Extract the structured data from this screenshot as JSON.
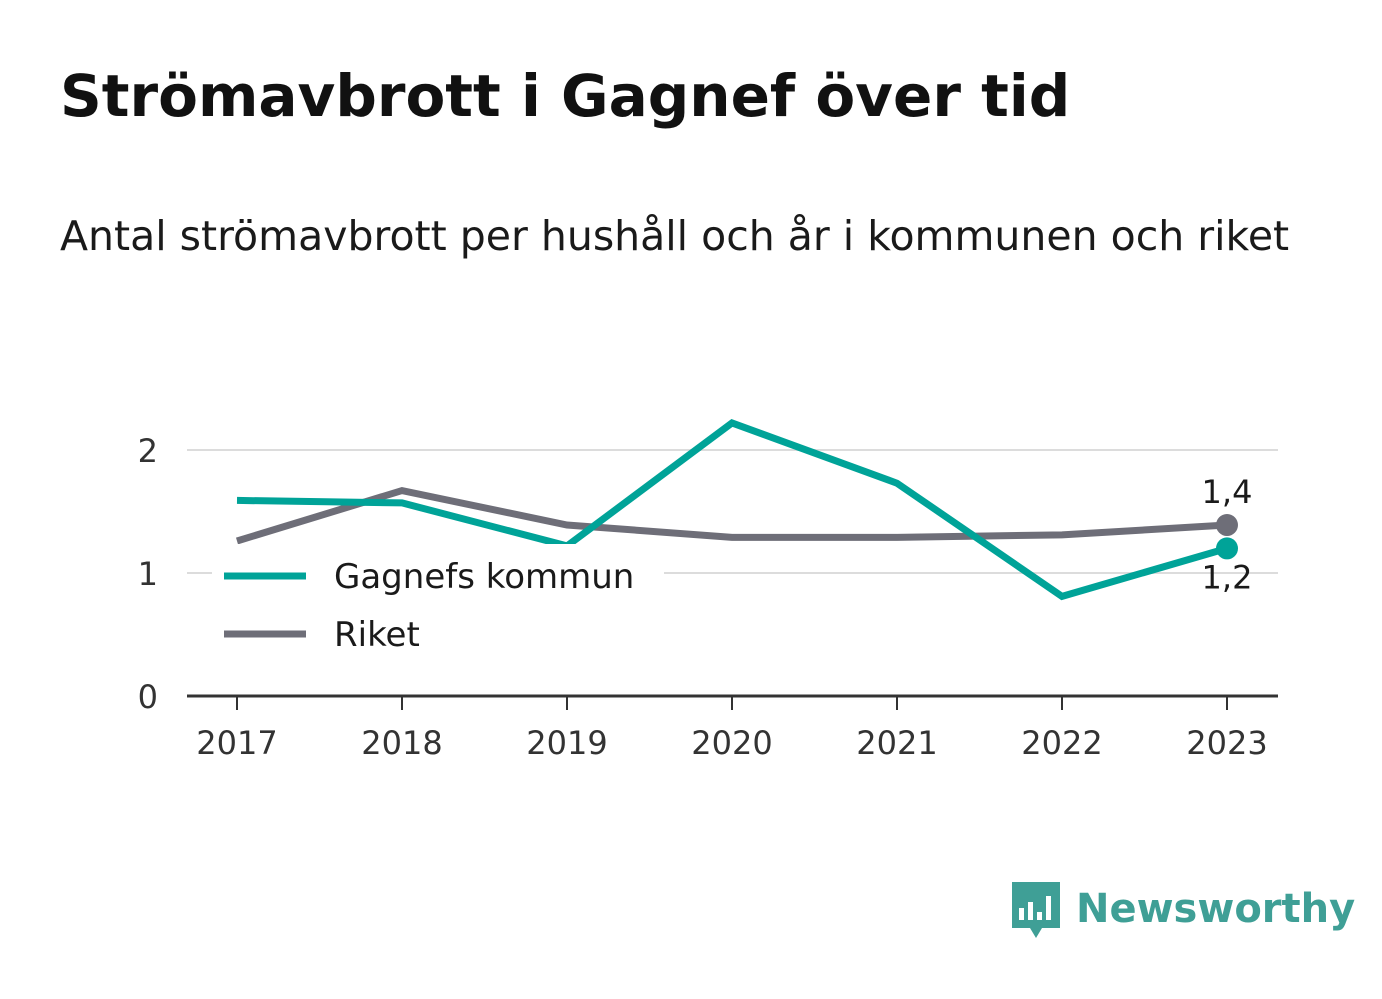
{
  "header": {
    "title": "Strömavbrott i Gagnef över tid",
    "subtitle": "Antal strömavbrott per hushåll och år i kommunen och riket"
  },
  "chart_data": {
    "type": "line",
    "x": [
      "2017",
      "2018",
      "2019",
      "2020",
      "2021",
      "2022",
      "2023"
    ],
    "series": [
      {
        "name": "Gagnefs kommun",
        "color": "#00a398",
        "values": [
          1.59,
          1.57,
          1.22,
          2.22,
          1.73,
          0.81,
          1.2
        ]
      },
      {
        "name": "Riket",
        "color": "#6e6e78",
        "values": [
          1.26,
          1.67,
          1.39,
          1.29,
          1.29,
          1.31,
          1.39
        ]
      }
    ],
    "end_labels": {
      "Gagnefs kommun": "1,2",
      "Riket": "1,4"
    },
    "yticks": [
      0,
      1,
      2
    ],
    "ylim": [
      0,
      2.4
    ],
    "grid": true,
    "legend_position": "bottom-left",
    "xlabel": "",
    "ylabel": ""
  },
  "branding": {
    "logo_icon": "newsworthy-logo-icon",
    "logo_text": "Newsworthy",
    "color": "#3f9f96"
  }
}
